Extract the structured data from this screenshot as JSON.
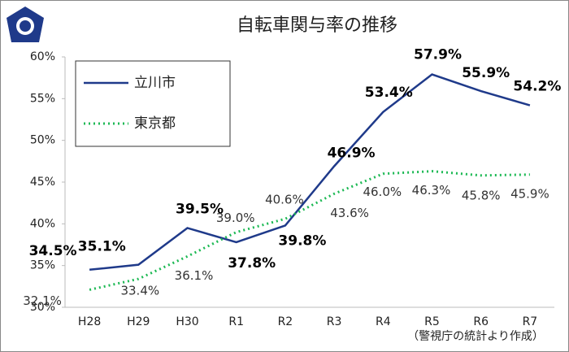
{
  "chart_data": {
    "type": "line",
    "title": "自転車関与率の推移",
    "categories": [
      "H28",
      "H29",
      "H30",
      "R1",
      "R2",
      "R3",
      "R4",
      "R5",
      "R6",
      "R7"
    ],
    "series": [
      {
        "name": "立川市",
        "color": "#1f3a8a",
        "style": "solid",
        "values": [
          34.5,
          35.1,
          39.5,
          37.8,
          39.8,
          46.9,
          53.4,
          57.9,
          55.9,
          54.2
        ],
        "value_labels": [
          "34.5%",
          "35.1%",
          "39.5%",
          "37.8%",
          "39.8%",
          "46.9%",
          "53.4%",
          "57.9%",
          "55.9%",
          "54.2%"
        ]
      },
      {
        "name": "東京都",
        "color": "#1db954",
        "style": "dotted",
        "values": [
          32.1,
          33.4,
          36.1,
          39.0,
          40.6,
          43.6,
          46.0,
          46.3,
          45.8,
          45.9
        ],
        "value_labels": [
          "32.1%",
          "33.4%",
          "36.1%",
          "39.0%",
          "40.6%",
          "43.6%",
          "46.0%",
          "46.3%",
          "45.8%",
          "45.9%"
        ]
      }
    ],
    "ylim": [
      30,
      60
    ],
    "yticks": [
      {
        "value": 30,
        "label": "30%"
      },
      {
        "value": 35,
        "label": "35%"
      },
      {
        "value": 40,
        "label": "40%"
      },
      {
        "value": 45,
        "label": "45%"
      },
      {
        "value": 50,
        "label": "50%"
      },
      {
        "value": 55,
        "label": "55%"
      },
      {
        "value": 60,
        "label": "60%"
      }
    ],
    "grid": false,
    "annotation": "（警視庁の統計より作成）"
  }
}
